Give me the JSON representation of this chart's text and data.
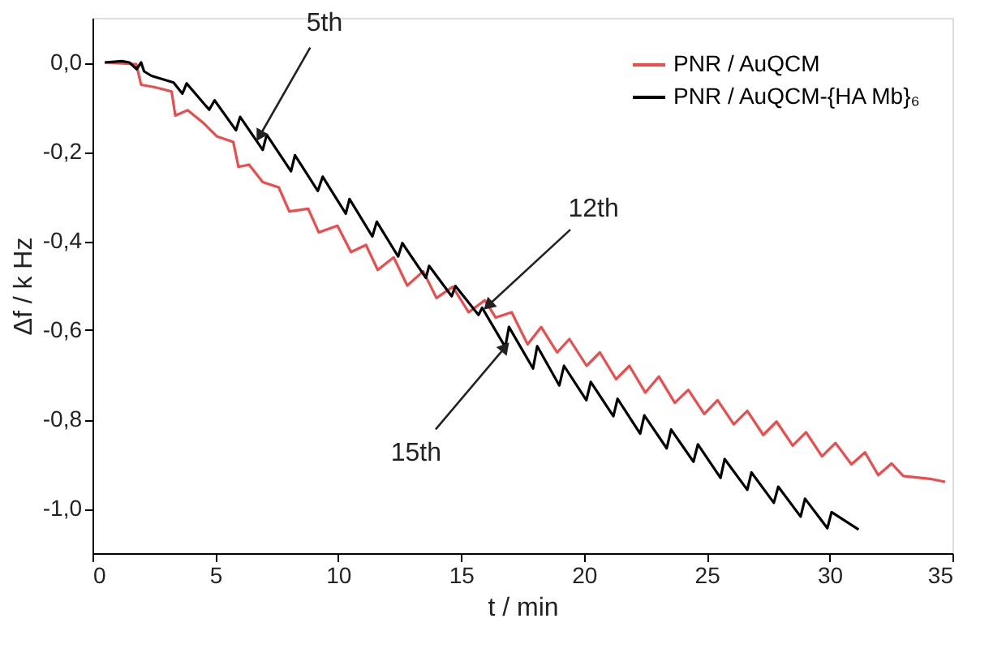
{
  "chart_data": {
    "type": "line",
    "xlabel": "t / min",
    "ylabel": "Δf / k Hz",
    "xlim": [
      0,
      35
    ],
    "xticks": [
      0,
      5,
      10,
      15,
      20,
      25,
      30,
      35
    ],
    "ylim": [
      -1.1,
      0.1
    ],
    "yticks": [
      {
        "value": 0,
        "label": "0,0"
      },
      {
        "value": -0.2,
        "label": "-0,2"
      },
      {
        "value": -0.4,
        "label": "-0,4"
      },
      {
        "value": -0.6,
        "label": "-0,6"
      },
      {
        "value": -0.8,
        "label": "-0,8"
      },
      {
        "value": -1.0,
        "label": "-1,0"
      }
    ],
    "grid": false,
    "legend": "top right",
    "marker": "none",
    "line_style": "solid",
    "series": [
      {
        "name": "PNR / AuQCM",
        "color": "#f04a4a",
        "x": [
          0.5,
          1.78,
          1.98,
          2.5,
          3.22,
          3.37,
          3.87,
          4.52,
          5.07,
          5.73,
          5.94,
          6.37,
          6.93,
          7.58,
          8.01,
          8.78,
          9.21,
          9.97,
          10.52,
          11.13,
          11.61,
          12.26,
          12.81,
          13.46,
          14.0,
          14.66,
          15.31,
          15.97,
          16.41,
          17.06,
          17.71,
          18.26,
          18.91,
          19.41,
          20.11,
          20.65,
          21.31,
          21.85,
          22.5,
          23.05,
          23.7,
          24.25,
          24.9,
          25.44,
          26.1,
          26.65,
          27.3,
          27.84,
          28.5,
          29.04,
          29.69,
          30.24,
          30.89,
          31.44,
          31.98,
          32.52,
          33.0,
          34.16,
          34.7
        ],
        "values": [
          0.0,
          -0.004,
          -0.05,
          -0.055,
          -0.065,
          -0.119,
          -0.107,
          -0.136,
          -0.166,
          -0.178,
          -0.234,
          -0.229,
          -0.268,
          -0.28,
          -0.334,
          -0.328,
          -0.381,
          -0.366,
          -0.425,
          -0.409,
          -0.465,
          -0.437,
          -0.5,
          -0.468,
          -0.528,
          -0.503,
          -0.56,
          -0.533,
          -0.572,
          -0.56,
          -0.632,
          -0.593,
          -0.65,
          -0.62,
          -0.68,
          -0.65,
          -0.71,
          -0.68,
          -0.74,
          -0.704,
          -0.763,
          -0.734,
          -0.788,
          -0.757,
          -0.811,
          -0.781,
          -0.835,
          -0.805,
          -0.859,
          -0.829,
          -0.883,
          -0.853,
          -0.901,
          -0.874,
          -0.925,
          -0.899,
          -0.927,
          -0.934,
          -0.94
        ]
      },
      {
        "name": "PNR / AuQCM-{HA Mb}₆",
        "color": "#000000",
        "x": [
          0.5,
          1.2,
          1.5,
          1.8,
          1.98,
          2.1,
          2.4,
          3.3,
          3.66,
          3.83,
          4.75,
          4.97,
          5.84,
          6.01,
          6.93,
          7.09,
          8.08,
          8.24,
          9.17,
          9.37,
          10.31,
          10.46,
          11.39,
          11.57,
          12.44,
          12.61,
          13.57,
          13.7,
          14.62,
          14.77,
          15.71,
          15.86,
          16.8,
          16.95,
          17.93,
          18.1,
          19.0,
          19.19,
          20.1,
          20.28,
          21.2,
          21.37,
          22.29,
          22.46,
          23.37,
          23.55,
          24.46,
          24.64,
          25.56,
          25.73,
          26.65,
          26.82,
          27.73,
          27.91,
          28.82,
          29.0,
          29.91,
          30.08,
          31.18
        ],
        "values": [
          0.0,
          0.003,
          0.0,
          -0.015,
          0.0,
          -0.02,
          -0.03,
          -0.045,
          -0.07,
          -0.047,
          -0.106,
          -0.085,
          -0.152,
          -0.122,
          -0.196,
          -0.162,
          -0.244,
          -0.208,
          -0.288,
          -0.256,
          -0.339,
          -0.306,
          -0.39,
          -0.357,
          -0.435,
          -0.405,
          -0.483,
          -0.456,
          -0.524,
          -0.501,
          -0.566,
          -0.55,
          -0.638,
          -0.593,
          -0.686,
          -0.636,
          -0.724,
          -0.68,
          -0.757,
          -0.716,
          -0.793,
          -0.754,
          -0.832,
          -0.791,
          -0.865,
          -0.823,
          -0.895,
          -0.856,
          -0.931,
          -0.889,
          -0.958,
          -0.919,
          -0.987,
          -0.951,
          -1.018,
          -0.978,
          -1.044,
          -1.008,
          -1.047
        ]
      }
    ],
    "annotations": [
      {
        "text": "5th",
        "x": 6.8,
        "y": -0.165
      },
      {
        "text": "12th",
        "x": 16.1,
        "y": -0.545
      },
      {
        "text": "15th",
        "x": 16.8,
        "y": -0.638
      }
    ]
  }
}
